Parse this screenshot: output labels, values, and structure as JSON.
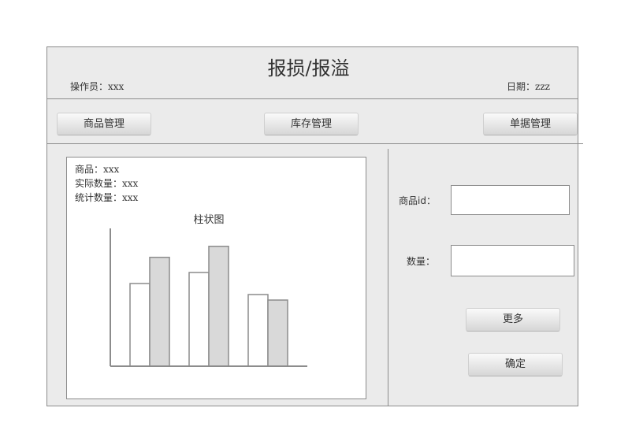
{
  "header": {
    "title": "报损/报溢",
    "operator": "操作员：xxx",
    "date": "日期：zzz"
  },
  "nav": {
    "products": "商品管理",
    "inventory": "库存管理",
    "documents": "单据管理"
  },
  "info": {
    "product": "商品：xxx",
    "actual_quantity": "实际数量：xxx",
    "stat_quantity": "统计数量：xxx"
  },
  "form": {
    "product_id_label": "商品id：",
    "product_id_value": "",
    "quantity_label": "数量：",
    "quantity_value": "",
    "more_button": "更多",
    "confirm_button": "确定"
  },
  "colors": {
    "frame_bg": "#ebebeb",
    "border": "#8c8c8c",
    "bar_light": "#ffffff",
    "bar_dark": "#d9d9d9"
  },
  "chart_data": {
    "type": "bar",
    "title": "柱状图",
    "categories": [
      "",
      "",
      ""
    ],
    "series": [
      {
        "values": [
          60,
          68,
          52
        ]
      },
      {
        "values": [
          79,
          87,
          48
        ]
      }
    ],
    "ylim": [
      0,
      100
    ],
    "grid": false,
    "axis_ticks": false
  }
}
